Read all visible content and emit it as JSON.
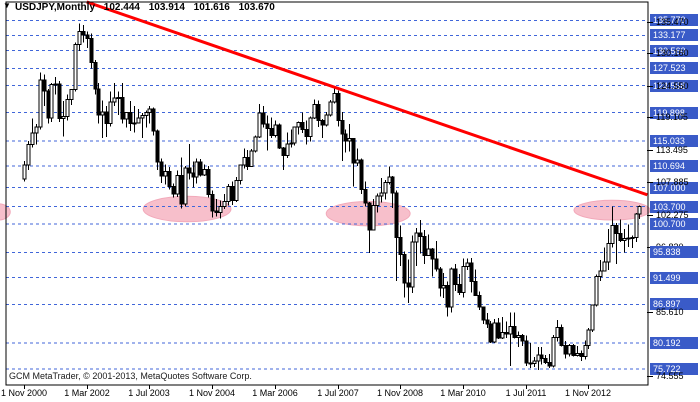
{
  "title": {
    "instrument": "USDJPY,Monthly",
    "open": "102.444",
    "high": "103.914",
    "low": "101.616",
    "close": "103.670"
  },
  "copyright": "GCM MetaTrader, © 2001-2013, MetaQuotes Software Corp.",
  "icons": {
    "dropdown_arrow": "▼"
  },
  "colors": {
    "badge_blue": "#3A5BC8",
    "badge_text": "#FFFFFF",
    "level_line_blue": "#4066D9",
    "trend_red": "#FF0000",
    "ellipse_pink": "#F7BFCB",
    "ellipse_pink_edge": "#F2A9BA",
    "candle_up_fill": "#FFFFFF",
    "candle_down_fill": "#000000",
    "candle_outline": "#000000",
    "axis_text": "#000000",
    "border_black": "#000000"
  },
  "chart_data": {
    "type": "candlestick",
    "symbol": "USDJPY",
    "timeframe": "Monthly",
    "current_bar": {
      "open": 102.444,
      "high": 103.914,
      "low": 101.616,
      "close": 103.67
    },
    "x_axis": {
      "first_bar_month": "Nov 2000",
      "labels": [
        "1 Nov 2000",
        "1 Mar 2002",
        "1 Jul 2003",
        "1 Nov 2004",
        "1 Mar 2006",
        "1 Jul 2007",
        "1 Nov 2008",
        "1 Mar 2010",
        "1 Jul 2011",
        "1 Nov 2012"
      ],
      "label_month_indexes": [
        0,
        16,
        32,
        48,
        64,
        80,
        96,
        112,
        128,
        144
      ]
    },
    "y_axis": {
      "visible_range": [
        73.0,
        138.6
      ],
      "tick_labels": [
        {
          "label": "135.470",
          "price": 135.47
        },
        {
          "label": "130.160",
          "price": 130.16
        },
        {
          "label": "124.550",
          "price": 124.55
        },
        {
          "label": "119.105",
          "price": 119.105
        },
        {
          "label": "113.495",
          "price": 113.495
        },
        {
          "label": "107.885",
          "price": 107.885
        },
        {
          "label": "102.275",
          "price": 102.275
        },
        {
          "label": "96.830",
          "price": 96.83,
          "behind": true
        },
        {
          "label": "85.610",
          "price": 85.61
        },
        {
          "label": "74.555",
          "price": 74.555
        }
      ],
      "badge_labels": [
        {
          "label": "135.770",
          "price": 135.77
        },
        {
          "label": "133.177",
          "price": 133.177
        },
        {
          "label": "130.560",
          "price": 130.56
        },
        {
          "label": "127.523",
          "price": 127.523
        },
        {
          "label": "124.558",
          "price": 124.558
        },
        {
          "label": "119.898",
          "price": 119.898
        },
        {
          "label": "115.033",
          "price": 115.033
        },
        {
          "label": "110.694",
          "price": 110.694
        },
        {
          "label": "107.000",
          "price": 107.0
        },
        {
          "label": "103.700",
          "price": 103.7
        },
        {
          "label": "100.700",
          "price": 100.7
        },
        {
          "label": "95.838",
          "price": 95.838
        },
        {
          "label": "91.499",
          "price": 91.499
        },
        {
          "label": "86.897",
          "price": 86.897
        },
        {
          "label": "80.192",
          "price": 80.192
        },
        {
          "label": "75.722",
          "price": 75.722
        }
      ]
    },
    "bars": {
      "first_open": 108.5,
      "closes": [
        110.9,
        114.4,
        116.4,
        117.4,
        125.5,
        123.6,
        119.0,
        124.7,
        124.8,
        118.9,
        119.2,
        122.2,
        123.9,
        131.6,
        133.9,
        133.3,
        132.7,
        128.5,
        124.0,
        119.5,
        120.0,
        118.0,
        121.7,
        122.4,
        122.5,
        118.8,
        119.9,
        118.0,
        118.1,
        119.0,
        119.4,
        119.9,
        120.5,
        116.7,
        111.4,
        109.0,
        109.8,
        107.2,
        105.9,
        109.1,
        104.2,
        110.4,
        109.5,
        108.8,
        111.4,
        109.2,
        110.1,
        105.8,
        103.0,
        102.7,
        103.7,
        104.6,
        107.2,
        104.8,
        108.2,
        110.9,
        112.2,
        110.6,
        113.3,
        115.7,
        119.8,
        117.9,
        117.2,
        116.0,
        117.8,
        113.8,
        112.5,
        114.5,
        114.7,
        117.4,
        118.2,
        117.0,
        115.8,
        119.0,
        121.3,
        118.5,
        117.8,
        119.5,
        121.7,
        123.2,
        118.5,
        116.2,
        115.0,
        115.4,
        111.2,
        111.7,
        106.7,
        104.3,
        99.7,
        103.9,
        105.5,
        106.1,
        107.9,
        108.8,
        106.1,
        98.4,
        95.5,
        90.6,
        89.9,
        97.6,
        99.2,
        98.6,
        95.3,
        96.4,
        94.7,
        93.0,
        89.7,
        90.1,
        86.4,
        93.0,
        90.3,
        88.9,
        93.4,
        94.0,
        90.8,
        88.4,
        86.4,
        84.2,
        83.5,
        80.4,
        83.7,
        81.1,
        82.0,
        81.8,
        83.1,
        81.2,
        81.5,
        80.6,
        76.8,
        76.7,
        77.1,
        78.2,
        77.6,
        76.9,
        76.3,
        81.2,
        82.9,
        79.8,
        78.3,
        79.8,
        78.1,
        78.4,
        77.9,
        79.8,
        82.5,
        86.8,
        91.7,
        92.6,
        94.2,
        97.4,
        100.5,
        99.1,
        97.9,
        98.2,
        98.3,
        98.4,
        102.4,
        103.7
      ],
      "highs": [
        111.6,
        115.0,
        118.9,
        117.9,
        126.8,
        126.5,
        124.0,
        125.0,
        126.0,
        125.3,
        121.9,
        123.0,
        124.0,
        132.0,
        135.2,
        135.0,
        133.9,
        133.5,
        129.0,
        125.0,
        122.0,
        121.0,
        123.5,
        125.0,
        123.5,
        125.0,
        120.0,
        121.9,
        121.0,
        120.5,
        119.8,
        120.3,
        121.0,
        120.8,
        117.0,
        112.0,
        111.0,
        110.5,
        107.7,
        109.9,
        112.2,
        110.7,
        114.5,
        111.5,
        112.0,
        111.9,
        111.0,
        110.7,
        106.5,
        105.0,
        104.8,
        105.9,
        107.6,
        108.0,
        108.8,
        111.0,
        113.7,
        113.5,
        113.6,
        116.0,
        121.4,
        121.0,
        119.4,
        119.1,
        118.5,
        118.0,
        114.0,
        116.5,
        117.0,
        117.5,
        118.4,
        119.9,
        118.5,
        119.2,
        122.2,
        122.0,
        118.8,
        120.0,
        122.1,
        124.1,
        123.7,
        120.0,
        117.0,
        117.9,
        115.5,
        113.7,
        112.0,
        108.0,
        104.5,
        105.0,
        106.0,
        108.6,
        108.3,
        110.6,
        109.0,
        106.5,
        100.5,
        96.0,
        94.6,
        98.7,
        100.0,
        101.4,
        99.7,
        98.9,
        96.6,
        97.8,
        93.3,
        92.3,
        90.8,
        93.2,
        93.8,
        92.1,
        94.8,
        94.8,
        94.9,
        92.9,
        89.1,
        86.3,
        85.4,
        84.0,
        84.4,
        84.5,
        84.7,
        83.9,
        85.5,
        85.5,
        82.2,
        81.8,
        81.5,
        80.2,
        77.8,
        79.5,
        79.5,
        78.2,
        78.3,
        81.6,
        84.2,
        83.4,
        80.6,
        80.1,
        80.1,
        79.7,
        78.9,
        80.7,
        82.8,
        86.9,
        92.0,
        94.5,
        96.7,
        99.9,
        103.7,
        100.9,
        101.5,
        99.9,
        100.6,
        98.7,
        102.6,
        103.9
      ],
      "lows": [
        108.0,
        110.0,
        113.9,
        114.4,
        117.0,
        121.0,
        118.0,
        118.3,
        123.0,
        118.3,
        115.8,
        118.5,
        121.2,
        123.5,
        130.5,
        132.0,
        131.0,
        127.5,
        123.0,
        118.0,
        115.5,
        115.7,
        117.5,
        121.0,
        119.5,
        118.0,
        117.3,
        116.7,
        116.5,
        118.0,
        115.5,
        117.3,
        118.0,
        116.0,
        110.0,
        107.8,
        107.5,
        106.7,
        105.3,
        105.4,
        103.4,
        103.7,
        108.4,
        107.0,
        107.7,
        108.9,
        109.0,
        105.3,
        101.8,
        102.0,
        101.7,
        103.3,
        103.9,
        104.0,
        104.5,
        107.5,
        110.3,
        110.0,
        110.5,
        113.0,
        115.5,
        117.3,
        113.4,
        115.5,
        115.6,
        113.6,
        110.0,
        112.1,
        113.9,
        114.2,
        116.1,
        116.4,
        114.4,
        114.9,
        118.8,
        117.4,
        115.5,
        117.5,
        119.2,
        121.5,
        117.5,
        111.6,
        113.0,
        113.2,
        107.2,
        110.7,
        105.9,
        103.7,
        95.7,
        99.8,
        102.7,
        104.4,
        104.9,
        107.5,
        103.5,
        90.9,
        93.5,
        88.1,
        87.1,
        88.8,
        93.5,
        95.6,
        93.8,
        95.3,
        91.7,
        92.5,
        88.2,
        88.0,
        84.8,
        85.5,
        89.2,
        88.5,
        88.1,
        92.8,
        88.9,
        88.3,
        85.9,
        83.5,
        82.8,
        80.2,
        80.2,
        80.9,
        80.9,
        81.1,
        76.3,
        81.0,
        79.5,
        79.7,
        76.3,
        75.9,
        76.1,
        75.6,
        76.5,
        76.6,
        75.9,
        76.0,
        80.5,
        79.6,
        77.6,
        77.9,
        77.9,
        77.9,
        77.1,
        77.4,
        79.2,
        82.1,
        86.5,
        90.9,
        92.6,
        92.8,
        96.7,
        93.8,
        97.6,
        95.8,
        96.8,
        96.6,
        97.6,
        101.6
      ]
    },
    "annotations": {
      "trendline": {
        "start_month_index": 16,
        "start_price": 138.95,
        "end_month_index": 159,
        "end_price": 105.75
      },
      "ellipses": [
        {
          "month_index": -6.6,
          "price": 102.8,
          "rx_months": 3.1,
          "ry_price": 1.4
        },
        {
          "month_index": 41.6,
          "price": 103.3,
          "rx_months": 11.2,
          "ry_price": 2.2
        },
        {
          "month_index": 87.8,
          "price": 102.5,
          "rx_months": 10.7,
          "ry_price": 2.1
        },
        {
          "month_index": 150.0,
          "price": 103.1,
          "rx_months": 9.7,
          "ry_price": 1.7
        }
      ]
    },
    "legend_position": "none",
    "grid": "horizontal-dashed-levels-only"
  }
}
